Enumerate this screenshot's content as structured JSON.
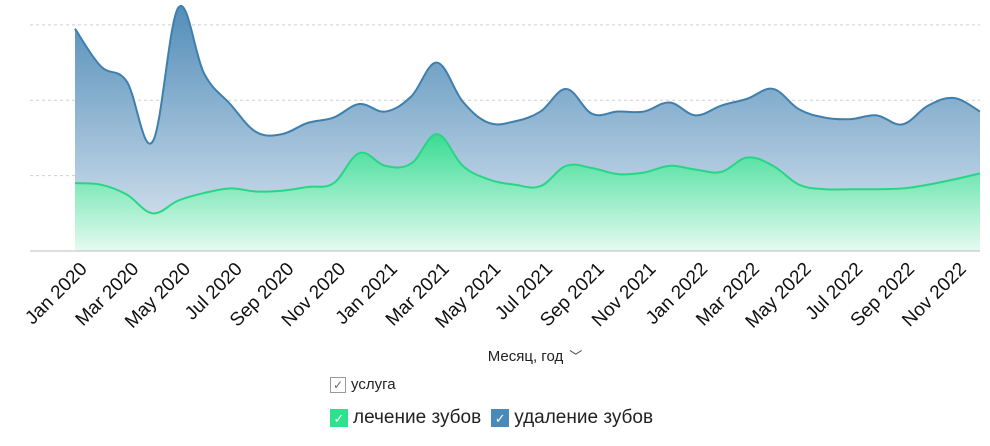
{
  "chart_data": {
    "type": "area",
    "x": [
      "Jan 2020",
      "Feb 2020",
      "Mar 2020",
      "Apr 2020",
      "May 2020",
      "Jun 2020",
      "Jul 2020",
      "Aug 2020",
      "Sep 2020",
      "Oct 2020",
      "Nov 2020",
      "Dec 2020",
      "Jan 2021",
      "Feb 2021",
      "Mar 2021",
      "Apr 2021",
      "May 2021",
      "Jun 2021",
      "Jul 2021",
      "Aug 2021",
      "Sep 2021",
      "Oct 2021",
      "Nov 2021",
      "Dec 2021",
      "Jan 2022",
      "Feb 2022",
      "Mar 2022",
      "Apr 2022",
      "May 2022",
      "Jun 2022",
      "Jul 2022",
      "Aug 2022",
      "Sep 2022",
      "Oct 2022",
      "Nov 2022",
      "Dec 2022"
    ],
    "tick_labels": [
      "Jan 2020",
      "Mar 2020",
      "May 2020",
      "Jul 2020",
      "Sep 2020",
      "Nov 2020",
      "Jan 2021",
      "Mar 2021",
      "May 2021",
      "Jul 2021",
      "Sep 2021",
      "Nov 2021",
      "Jan 2022",
      "Mar 2022",
      "May 2022",
      "Jul 2022",
      "Sep 2022",
      "Nov 2022"
    ],
    "series": [
      {
        "name": "лечение зубов",
        "color": "#2fdf8f",
        "values": [
          0.9,
          0.88,
          0.75,
          0.5,
          0.67,
          0.77,
          0.83,
          0.79,
          0.8,
          0.85,
          0.9,
          1.3,
          1.13,
          1.16,
          1.55,
          1.13,
          0.95,
          0.88,
          0.86,
          1.13,
          1.1,
          1.02,
          1.04,
          1.13,
          1.08,
          1.05,
          1.24,
          1.13,
          0.88,
          0.82,
          0.82,
          0.82,
          0.83,
          0.88,
          0.95,
          1.03
        ]
      },
      {
        "name": "удаление зубов",
        "color": "#4a8ab8",
        "values": [
          2.95,
          2.45,
          2.25,
          1.45,
          3.23,
          2.35,
          1.95,
          1.58,
          1.55,
          1.7,
          1.77,
          1.95,
          1.85,
          2.05,
          2.5,
          1.98,
          1.7,
          1.72,
          1.85,
          2.15,
          1.82,
          1.85,
          1.85,
          1.97,
          1.8,
          1.93,
          2.02,
          2.15,
          1.88,
          1.77,
          1.75,
          1.8,
          1.68,
          1.93,
          2.03,
          1.85
        ]
      }
    ],
    "ylim": [
      0,
      3.33
    ],
    "grid": true,
    "xlabel": "Месяц, год",
    "legend": {
      "title": "услуга",
      "position": "bottom"
    }
  },
  "legend_title": "услуга",
  "legend_items": [
    "лечение зубов",
    "удаление зубов"
  ],
  "xlabel": "Месяц, год"
}
